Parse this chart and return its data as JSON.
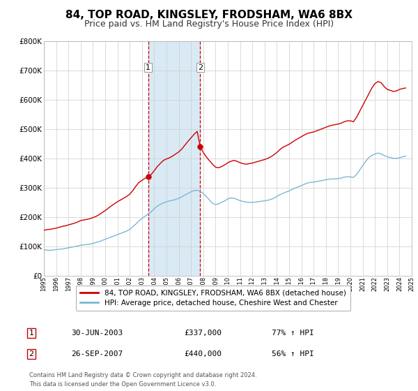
{
  "title": "84, TOP ROAD, KINGSLEY, FRODSHAM, WA6 8BX",
  "subtitle": "Price paid vs. HM Land Registry's House Price Index (HPI)",
  "title_fontsize": 11,
  "subtitle_fontsize": 9,
  "legend_line1": "84, TOP ROAD, KINGSLEY, FRODSHAM, WA6 8BX (detached house)",
  "legend_line2": "HPI: Average price, detached house, Cheshire West and Chester",
  "table_row1": [
    "1",
    "30-JUN-2003",
    "£337,000",
    "77% ↑ HPI"
  ],
  "table_row2": [
    "2",
    "26-SEP-2007",
    "£440,000",
    "56% ↑ HPI"
  ],
  "footer": "Contains HM Land Registry data © Crown copyright and database right 2024.\nThis data is licensed under the Open Government Licence v3.0.",
  "hpi_color": "#7bb8d4",
  "price_color": "#cc0000",
  "background_color": "#ffffff",
  "shading_color": "#daeaf5",
  "dot_color": "#cc0000",
  "vline_color": "#cc0000",
  "sale1_date": 2003.5,
  "sale1_price": 337000,
  "sale2_date": 2007.75,
  "sale2_price": 440000,
  "ylim": [
    0,
    800000
  ],
  "xlim_start": 1995,
  "xlim_end": 2025,
  "hpi_data": [
    [
      1995.0,
      88000
    ],
    [
      1995.25,
      87000
    ],
    [
      1995.5,
      86500
    ],
    [
      1995.75,
      87500
    ],
    [
      1996.0,
      89000
    ],
    [
      1996.25,
      90000
    ],
    [
      1996.5,
      91000
    ],
    [
      1996.75,
      92500
    ],
    [
      1997.0,
      95000
    ],
    [
      1997.25,
      97000
    ],
    [
      1997.5,
      99000
    ],
    [
      1997.75,
      101000
    ],
    [
      1998.0,
      104000
    ],
    [
      1998.25,
      105000
    ],
    [
      1998.5,
      106000
    ],
    [
      1998.75,
      107000
    ],
    [
      1999.0,
      110000
    ],
    [
      1999.25,
      113000
    ],
    [
      1999.5,
      116000
    ],
    [
      1999.75,
      120000
    ],
    [
      2000.0,
      124000
    ],
    [
      2000.25,
      128000
    ],
    [
      2000.5,
      132000
    ],
    [
      2000.75,
      136000
    ],
    [
      2001.0,
      140000
    ],
    [
      2001.25,
      144000
    ],
    [
      2001.5,
      148000
    ],
    [
      2001.75,
      152000
    ],
    [
      2002.0,
      158000
    ],
    [
      2002.25,
      167000
    ],
    [
      2002.5,
      176000
    ],
    [
      2002.75,
      187000
    ],
    [
      2003.0,
      195000
    ],
    [
      2003.25,
      203000
    ],
    [
      2003.5,
      210000
    ],
    [
      2003.75,
      218000
    ],
    [
      2004.0,
      228000
    ],
    [
      2004.25,
      237000
    ],
    [
      2004.5,
      243000
    ],
    [
      2004.75,
      248000
    ],
    [
      2005.0,
      252000
    ],
    [
      2005.25,
      255000
    ],
    [
      2005.5,
      257000
    ],
    [
      2005.75,
      260000
    ],
    [
      2006.0,
      264000
    ],
    [
      2006.25,
      269000
    ],
    [
      2006.5,
      275000
    ],
    [
      2006.75,
      280000
    ],
    [
      2007.0,
      286000
    ],
    [
      2007.25,
      290000
    ],
    [
      2007.5,
      291000
    ],
    [
      2007.75,
      288000
    ],
    [
      2008.0,
      280000
    ],
    [
      2008.25,
      270000
    ],
    [
      2008.5,
      258000
    ],
    [
      2008.75,
      247000
    ],
    [
      2009.0,
      242000
    ],
    [
      2009.25,
      245000
    ],
    [
      2009.5,
      250000
    ],
    [
      2009.75,
      255000
    ],
    [
      2010.0,
      262000
    ],
    [
      2010.25,
      265000
    ],
    [
      2010.5,
      264000
    ],
    [
      2010.75,
      260000
    ],
    [
      2011.0,
      256000
    ],
    [
      2011.25,
      253000
    ],
    [
      2011.5,
      251000
    ],
    [
      2011.75,
      250000
    ],
    [
      2012.0,
      250000
    ],
    [
      2012.25,
      251000
    ],
    [
      2012.5,
      252000
    ],
    [
      2012.75,
      254000
    ],
    [
      2013.0,
      255000
    ],
    [
      2013.25,
      257000
    ],
    [
      2013.5,
      260000
    ],
    [
      2013.75,
      264000
    ],
    [
      2014.0,
      270000
    ],
    [
      2014.25,
      276000
    ],
    [
      2014.5,
      281000
    ],
    [
      2014.75,
      285000
    ],
    [
      2015.0,
      289000
    ],
    [
      2015.25,
      294000
    ],
    [
      2015.5,
      299000
    ],
    [
      2015.75,
      303000
    ],
    [
      2016.0,
      307000
    ],
    [
      2016.25,
      312000
    ],
    [
      2016.5,
      316000
    ],
    [
      2016.75,
      318000
    ],
    [
      2017.0,
      319000
    ],
    [
      2017.25,
      321000
    ],
    [
      2017.5,
      323000
    ],
    [
      2017.75,
      325000
    ],
    [
      2018.0,
      327000
    ],
    [
      2018.25,
      329000
    ],
    [
      2018.5,
      330000
    ],
    [
      2018.75,
      330000
    ],
    [
      2019.0,
      331000
    ],
    [
      2019.25,
      333000
    ],
    [
      2019.5,
      336000
    ],
    [
      2019.75,
      337000
    ],
    [
      2020.0,
      337000
    ],
    [
      2020.25,
      335000
    ],
    [
      2020.5,
      345000
    ],
    [
      2020.75,
      360000
    ],
    [
      2021.0,
      375000
    ],
    [
      2021.25,
      390000
    ],
    [
      2021.5,
      403000
    ],
    [
      2021.75,
      410000
    ],
    [
      2022.0,
      415000
    ],
    [
      2022.25,
      418000
    ],
    [
      2022.5,
      415000
    ],
    [
      2022.75,
      410000
    ],
    [
      2023.0,
      405000
    ],
    [
      2023.25,
      403000
    ],
    [
      2023.5,
      400000
    ],
    [
      2023.75,
      400000
    ],
    [
      2024.0,
      402000
    ],
    [
      2024.25,
      405000
    ],
    [
      2024.5,
      408000
    ]
  ],
  "price_data": [
    [
      1995.0,
      155000
    ],
    [
      1995.25,
      157000
    ],
    [
      1995.5,
      158000
    ],
    [
      1995.75,
      160000
    ],
    [
      1996.0,
      162000
    ],
    [
      1996.25,
      165000
    ],
    [
      1996.5,
      168000
    ],
    [
      1996.75,
      170000
    ],
    [
      1997.0,
      173000
    ],
    [
      1997.25,
      176000
    ],
    [
      1997.5,
      179000
    ],
    [
      1997.75,
      183000
    ],
    [
      1998.0,
      188000
    ],
    [
      1998.25,
      190000
    ],
    [
      1998.5,
      192000
    ],
    [
      1998.75,
      194000
    ],
    [
      1999.0,
      198000
    ],
    [
      1999.25,
      202000
    ],
    [
      1999.5,
      208000
    ],
    [
      1999.75,
      215000
    ],
    [
      2000.0,
      222000
    ],
    [
      2000.25,
      230000
    ],
    [
      2000.5,
      238000
    ],
    [
      2000.75,
      245000
    ],
    [
      2001.0,
      252000
    ],
    [
      2001.25,
      258000
    ],
    [
      2001.5,
      264000
    ],
    [
      2001.75,
      270000
    ],
    [
      2002.0,
      278000
    ],
    [
      2002.25,
      290000
    ],
    [
      2002.5,
      305000
    ],
    [
      2002.75,
      318000
    ],
    [
      2003.0,
      325000
    ],
    [
      2003.25,
      332000
    ],
    [
      2003.5,
      337000
    ],
    [
      2003.75,
      345000
    ],
    [
      2004.0,
      358000
    ],
    [
      2004.25,
      372000
    ],
    [
      2004.5,
      383000
    ],
    [
      2004.75,
      393000
    ],
    [
      2005.0,
      398000
    ],
    [
      2005.25,
      402000
    ],
    [
      2005.5,
      408000
    ],
    [
      2005.75,
      415000
    ],
    [
      2006.0,
      422000
    ],
    [
      2006.25,
      432000
    ],
    [
      2006.5,
      445000
    ],
    [
      2006.75,
      458000
    ],
    [
      2007.0,
      470000
    ],
    [
      2007.25,
      482000
    ],
    [
      2007.5,
      492000
    ],
    [
      2007.75,
      440000
    ],
    [
      2008.0,
      420000
    ],
    [
      2008.25,
      405000
    ],
    [
      2008.5,
      392000
    ],
    [
      2008.75,
      380000
    ],
    [
      2009.0,
      370000
    ],
    [
      2009.25,
      368000
    ],
    [
      2009.5,
      372000
    ],
    [
      2009.75,
      378000
    ],
    [
      2010.0,
      385000
    ],
    [
      2010.25,
      390000
    ],
    [
      2010.5,
      393000
    ],
    [
      2010.75,
      390000
    ],
    [
      2011.0,
      385000
    ],
    [
      2011.25,
      382000
    ],
    [
      2011.5,
      380000
    ],
    [
      2011.75,
      382000
    ],
    [
      2012.0,
      384000
    ],
    [
      2012.25,
      387000
    ],
    [
      2012.5,
      390000
    ],
    [
      2012.75,
      393000
    ],
    [
      2013.0,
      396000
    ],
    [
      2013.25,
      400000
    ],
    [
      2013.5,
      405000
    ],
    [
      2013.75,
      412000
    ],
    [
      2014.0,
      420000
    ],
    [
      2014.25,
      430000
    ],
    [
      2014.5,
      438000
    ],
    [
      2014.75,
      443000
    ],
    [
      2015.0,
      448000
    ],
    [
      2015.25,
      455000
    ],
    [
      2015.5,
      462000
    ],
    [
      2015.75,
      468000
    ],
    [
      2016.0,
      474000
    ],
    [
      2016.25,
      480000
    ],
    [
      2016.5,
      485000
    ],
    [
      2016.75,
      488000
    ],
    [
      2017.0,
      490000
    ],
    [
      2017.25,
      494000
    ],
    [
      2017.5,
      498000
    ],
    [
      2017.75,
      502000
    ],
    [
      2018.0,
      506000
    ],
    [
      2018.25,
      510000
    ],
    [
      2018.5,
      513000
    ],
    [
      2018.75,
      515000
    ],
    [
      2019.0,
      517000
    ],
    [
      2019.25,
      520000
    ],
    [
      2019.5,
      525000
    ],
    [
      2019.75,
      528000
    ],
    [
      2020.0,
      528000
    ],
    [
      2020.25,
      525000
    ],
    [
      2020.5,
      540000
    ],
    [
      2020.75,
      560000
    ],
    [
      2021.0,
      580000
    ],
    [
      2021.25,
      600000
    ],
    [
      2021.5,
      620000
    ],
    [
      2021.75,
      640000
    ],
    [
      2022.0,
      655000
    ],
    [
      2022.25,
      662000
    ],
    [
      2022.5,
      658000
    ],
    [
      2022.75,
      645000
    ],
    [
      2023.0,
      635000
    ],
    [
      2023.25,
      632000
    ],
    [
      2023.5,
      628000
    ],
    [
      2023.75,
      630000
    ],
    [
      2024.0,
      635000
    ],
    [
      2024.25,
      638000
    ],
    [
      2024.5,
      640000
    ]
  ]
}
